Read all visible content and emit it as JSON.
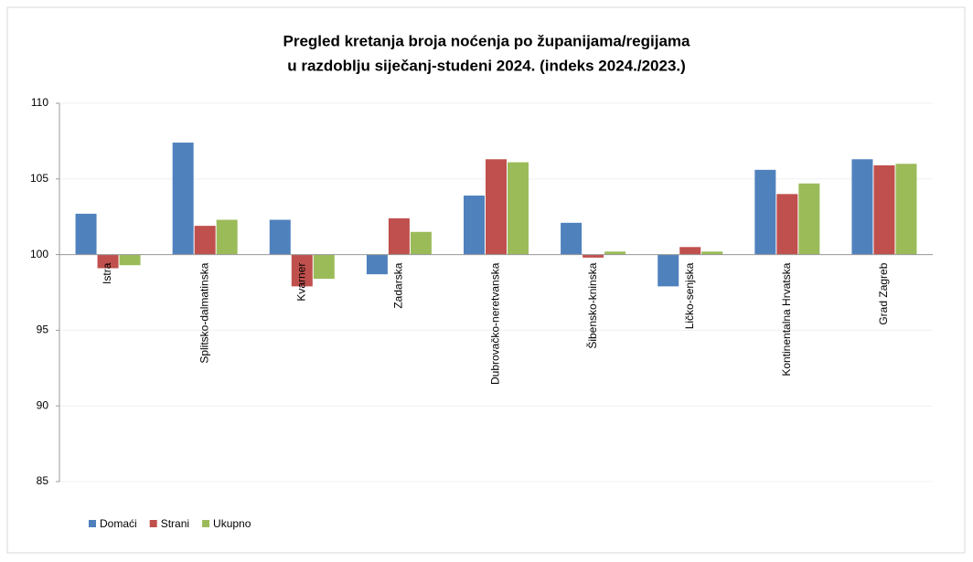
{
  "chart_data": {
    "type": "bar",
    "title": [
      "Pregled kretanja broja noćenja po županijama/regijama",
      "u razdoblju siječanj-studeni 2024. (indeks 2024./2023.)"
    ],
    "categories": [
      "Istra",
      "Splitsko-dalmatinska",
      "Kvarner",
      "Zadarska",
      "Dubrovačko-neretvanska",
      "Šibensko-kninska",
      "Ličko-senjska",
      "Kontinentalna Hrvatska",
      "Grad Zagreb"
    ],
    "series": [
      {
        "name": "Domaći",
        "color": "#4f81bd",
        "values": [
          102.7,
          107.4,
          102.3,
          98.7,
          103.9,
          102.1,
          97.9,
          105.6,
          106.3
        ]
      },
      {
        "name": "Strani",
        "color": "#c0504d",
        "values": [
          99.1,
          101.9,
          97.9,
          102.4,
          106.3,
          99.8,
          100.5,
          104.0,
          105.9
        ]
      },
      {
        "name": "Ukupno",
        "color": "#9bbb59",
        "values": [
          99.3,
          102.3,
          98.4,
          101.5,
          106.1,
          100.2,
          100.2,
          104.7,
          106.0
        ]
      }
    ],
    "ylim": [
      85,
      110
    ],
    "yticks": [
      85,
      90,
      95,
      100,
      105,
      110
    ],
    "grid": true,
    "x_axis_crosses": 100,
    "legend": "bottom-left"
  }
}
